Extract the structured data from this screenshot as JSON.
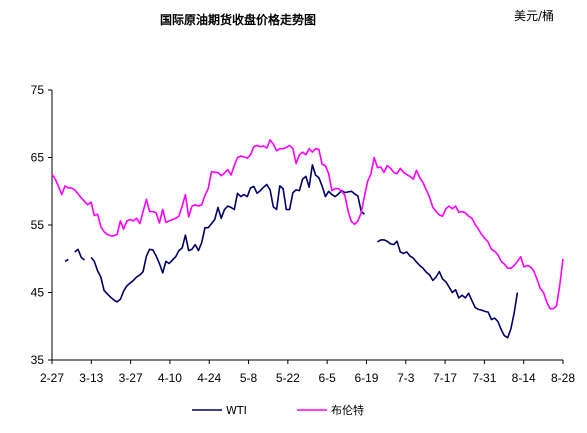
{
  "chart_data": {
    "type": "line",
    "title": "国际原油期货收盘价格走势图",
    "unit_label": "美元/桶",
    "xlabel": "",
    "ylabel": "",
    "ylim": [
      35,
      75
    ],
    "yticks": [
      35,
      45,
      55,
      65,
      75
    ],
    "x_tick_labels": [
      "2-27",
      "3-13",
      "3-27",
      "4-10",
      "4-24",
      "5-8",
      "5-22",
      "6-5",
      "6-19",
      "7-3",
      "7-17",
      "7-31",
      "8-14",
      "8-28"
    ],
    "grid": false,
    "legend_position": "bottom",
    "series": [
      {
        "name": "WTI",
        "color": "#000066",
        "points": [
          [
            0,
            49.5
          ],
          [
            2,
            49.8
          ],
          [
            4,
            49.6
          ],
          [
            5,
            49.9
          ],
          [
            7,
            51.0
          ],
          [
            8,
            51.4
          ],
          [
            9,
            50.2
          ],
          [
            10,
            49.8
          ],
          [
            12,
            50.2
          ],
          [
            13,
            49.6
          ],
          [
            14,
            48.2
          ],
          [
            15,
            47.3
          ],
          [
            16,
            45.3
          ],
          [
            17,
            44.8
          ],
          [
            18,
            44.3
          ],
          [
            19,
            43.9
          ],
          [
            20,
            43.6
          ],
          [
            21,
            44.0
          ],
          [
            22,
            45.2
          ],
          [
            23,
            46.0
          ],
          [
            24,
            46.4
          ],
          [
            25,
            46.8
          ],
          [
            26,
            47.3
          ],
          [
            27,
            47.6
          ],
          [
            28,
            48.1
          ],
          [
            29,
            50.4
          ],
          [
            30,
            51.4
          ],
          [
            31,
            51.3
          ],
          [
            32,
            50.4
          ],
          [
            33,
            49.3
          ],
          [
            34,
            47.9
          ],
          [
            35,
            49.6
          ],
          [
            36,
            49.3
          ],
          [
            37,
            49.8
          ],
          [
            38,
            50.3
          ],
          [
            39,
            51.2
          ],
          [
            40,
            51.6
          ],
          [
            41,
            53.5
          ],
          [
            42,
            51.2
          ],
          [
            43,
            51.4
          ],
          [
            44,
            52.1
          ],
          [
            45,
            51.2
          ],
          [
            46,
            52.4
          ],
          [
            47,
            54.6
          ],
          [
            48,
            54.6
          ],
          [
            49,
            55.2
          ],
          [
            50,
            55.8
          ],
          [
            51,
            57.6
          ],
          [
            52,
            56.0
          ],
          [
            53,
            57.3
          ],
          [
            54,
            57.8
          ],
          [
            55,
            57.6
          ],
          [
            56,
            57.3
          ],
          [
            57,
            59.7
          ],
          [
            58,
            59.2
          ],
          [
            59,
            59.5
          ],
          [
            60,
            59.2
          ],
          [
            61,
            60.5
          ],
          [
            62,
            60.7
          ],
          [
            63,
            59.7
          ],
          [
            64,
            60.1
          ],
          [
            65,
            60.6
          ],
          [
            66,
            61.0
          ],
          [
            67,
            60.2
          ],
          [
            68,
            57.7
          ],
          [
            69,
            57.3
          ],
          [
            70,
            60.8
          ],
          [
            71,
            60.4
          ],
          [
            72,
            57.3
          ],
          [
            73,
            57.3
          ],
          [
            74,
            59.8
          ],
          [
            75,
            60.2
          ],
          [
            76,
            60.1
          ],
          [
            77,
            61.8
          ],
          [
            78,
            62.2
          ],
          [
            79,
            60.6
          ],
          [
            80,
            63.9
          ],
          [
            81,
            62.4
          ],
          [
            82,
            62.0
          ],
          [
            83,
            60.8
          ],
          [
            84,
            59.2
          ],
          [
            85,
            60.0
          ],
          [
            86,
            59.5
          ],
          [
            87,
            59.2
          ],
          [
            88,
            59.6
          ],
          [
            89,
            60.1
          ],
          [
            90,
            59.8
          ],
          [
            91,
            59.9
          ],
          [
            92,
            60.0
          ],
          [
            93,
            59.6
          ],
          [
            94,
            59.3
          ],
          [
            95,
            57.0
          ],
          [
            96,
            56.6
          ],
          [
            98,
            52.6
          ],
          [
            100,
            52.5
          ],
          [
            101,
            52.8
          ],
          [
            102,
            52.8
          ],
          [
            103,
            52.6
          ],
          [
            104,
            52.2
          ],
          [
            105,
            52.1
          ],
          [
            106,
            52.6
          ],
          [
            107,
            51.0
          ],
          [
            108,
            50.8
          ],
          [
            109,
            51.0
          ],
          [
            110,
            50.4
          ],
          [
            111,
            50.1
          ],
          [
            112,
            49.5
          ],
          [
            113,
            49.0
          ],
          [
            114,
            48.6
          ],
          [
            115,
            48.0
          ],
          [
            116,
            47.6
          ],
          [
            117,
            46.8
          ],
          [
            118,
            47.3
          ],
          [
            119,
            48.1
          ],
          [
            120,
            47.0
          ],
          [
            121,
            46.6
          ],
          [
            122,
            45.8
          ],
          [
            123,
            45.0
          ],
          [
            124,
            45.4
          ],
          [
            125,
            44.2
          ],
          [
            126,
            44.6
          ],
          [
            127,
            44.2
          ],
          [
            128,
            44.9
          ],
          [
            129,
            43.8
          ],
          [
            130,
            42.8
          ],
          [
            131,
            42.5
          ],
          [
            132,
            42.4
          ],
          [
            133,
            42.2
          ],
          [
            134,
            42.1
          ],
          [
            135,
            41.0
          ],
          [
            136,
            41.2
          ],
          [
            137,
            40.7
          ],
          [
            138,
            39.5
          ],
          [
            139,
            38.6
          ],
          [
            140,
            38.3
          ],
          [
            141,
            39.6
          ],
          [
            142,
            42.0
          ],
          [
            143,
            45.0
          ]
        ]
      },
      {
        "name": "布伦特",
        "color": "#ff00ff",
        "points": [
          [
            0,
            62.5
          ],
          [
            1,
            61.8
          ],
          [
            2,
            60.7
          ],
          [
            3,
            59.5
          ],
          [
            4,
            60.8
          ],
          [
            5,
            60.5
          ],
          [
            6,
            60.5
          ],
          [
            7,
            60.2
          ],
          [
            8,
            59.6
          ],
          [
            9,
            59.0
          ],
          [
            10,
            58.5
          ],
          [
            11,
            58.0
          ],
          [
            12,
            58.4
          ],
          [
            13,
            56.4
          ],
          [
            14,
            56.6
          ],
          [
            15,
            54.8
          ],
          [
            16,
            54.0
          ],
          [
            17,
            53.6
          ],
          [
            18,
            53.4
          ],
          [
            19,
            53.4
          ],
          [
            20,
            53.6
          ],
          [
            21,
            55.6
          ],
          [
            22,
            54.4
          ],
          [
            23,
            55.6
          ],
          [
            24,
            55.8
          ],
          [
            25,
            55.6
          ],
          [
            26,
            56.0
          ],
          [
            27,
            55.2
          ],
          [
            28,
            57.0
          ],
          [
            29,
            58.8
          ],
          [
            30,
            57.0
          ],
          [
            31,
            57.0
          ],
          [
            32,
            56.8
          ],
          [
            33,
            55.3
          ],
          [
            34,
            57.3
          ],
          [
            35,
            55.4
          ],
          [
            36,
            55.6
          ],
          [
            37,
            55.8
          ],
          [
            38,
            56.0
          ],
          [
            39,
            56.3
          ],
          [
            40,
            57.8
          ],
          [
            41,
            59.5
          ],
          [
            42,
            56.2
          ],
          [
            43,
            57.8
          ],
          [
            44,
            58.0
          ],
          [
            45,
            57.8
          ],
          [
            46,
            58.0
          ],
          [
            47,
            59.4
          ],
          [
            48,
            60.4
          ],
          [
            49,
            62.9
          ],
          [
            50,
            62.8
          ],
          [
            51,
            62.8
          ],
          [
            52,
            62.3
          ],
          [
            53,
            62.7
          ],
          [
            54,
            63.2
          ],
          [
            55,
            62.4
          ],
          [
            56,
            63.8
          ],
          [
            57,
            65.0
          ],
          [
            58,
            65.2
          ],
          [
            59,
            65.1
          ],
          [
            60,
            64.9
          ],
          [
            61,
            65.4
          ],
          [
            62,
            66.6
          ],
          [
            63,
            66.8
          ],
          [
            64,
            66.6
          ],
          [
            65,
            66.7
          ],
          [
            66,
            66.4
          ],
          [
            67,
            67.6
          ],
          [
            68,
            67.0
          ],
          [
            69,
            66.0
          ],
          [
            70,
            66.3
          ],
          [
            71,
            66.3
          ],
          [
            72,
            66.5
          ],
          [
            73,
            66.8
          ],
          [
            74,
            66.3
          ],
          [
            75,
            64.1
          ],
          [
            76,
            65.4
          ],
          [
            77,
            65.8
          ],
          [
            78,
            65.4
          ],
          [
            79,
            66.3
          ],
          [
            80,
            65.8
          ],
          [
            81,
            66.3
          ],
          [
            82,
            66.2
          ],
          [
            83,
            64.0
          ],
          [
            84,
            63.8
          ],
          [
            85,
            62.6
          ],
          [
            86,
            60.1
          ],
          [
            87,
            60.4
          ],
          [
            88,
            60.4
          ],
          [
            89,
            60.0
          ],
          [
            90,
            59.4
          ],
          [
            91,
            57.0
          ],
          [
            92,
            55.5
          ],
          [
            93,
            55.1
          ],
          [
            94,
            55.6
          ],
          [
            95,
            56.8
          ],
          [
            96,
            59.3
          ],
          [
            97,
            61.5
          ],
          [
            98,
            62.6
          ],
          [
            99,
            65.0
          ],
          [
            100,
            63.5
          ],
          [
            101,
            63.6
          ],
          [
            102,
            62.8
          ],
          [
            103,
            63.8
          ],
          [
            104,
            63.4
          ],
          [
            105,
            62.8
          ],
          [
            106,
            62.6
          ],
          [
            107,
            63.4
          ],
          [
            108,
            62.8
          ],
          [
            109,
            62.5
          ],
          [
            110,
            62.2
          ],
          [
            111,
            61.8
          ],
          [
            112,
            63.1
          ],
          [
            113,
            62.0
          ],
          [
            114,
            61.3
          ],
          [
            115,
            60.2
          ],
          [
            116,
            59.1
          ],
          [
            117,
            57.6
          ],
          [
            118,
            57.0
          ],
          [
            119,
            56.5
          ],
          [
            120,
            56.3
          ],
          [
            121,
            57.4
          ],
          [
            122,
            57.8
          ],
          [
            123,
            57.4
          ],
          [
            124,
            57.8
          ],
          [
            125,
            56.9
          ],
          [
            126,
            57.0
          ],
          [
            127,
            56.8
          ],
          [
            128,
            56.3
          ],
          [
            129,
            56.0
          ],
          [
            130,
            55.1
          ],
          [
            131,
            54.4
          ],
          [
            132,
            53.6
          ],
          [
            133,
            53.0
          ],
          [
            134,
            52.5
          ],
          [
            135,
            51.4
          ],
          [
            136,
            51.1
          ],
          [
            137,
            50.6
          ],
          [
            138,
            49.6
          ],
          [
            139,
            49.2
          ],
          [
            140,
            48.6
          ],
          [
            141,
            48.6
          ],
          [
            142,
            49.0
          ],
          [
            143,
            49.6
          ],
          [
            144,
            50.3
          ],
          [
            145,
            48.8
          ],
          [
            146,
            49.0
          ],
          [
            147,
            48.8
          ],
          [
            148,
            48.2
          ],
          [
            149,
            47.0
          ],
          [
            150,
            45.6
          ],
          [
            151,
            45.0
          ],
          [
            152,
            43.6
          ],
          [
            153,
            42.6
          ],
          [
            154,
            42.6
          ],
          [
            155,
            43.0
          ],
          [
            156,
            46.0
          ],
          [
            157,
            50.0
          ]
        ]
      }
    ]
  }
}
